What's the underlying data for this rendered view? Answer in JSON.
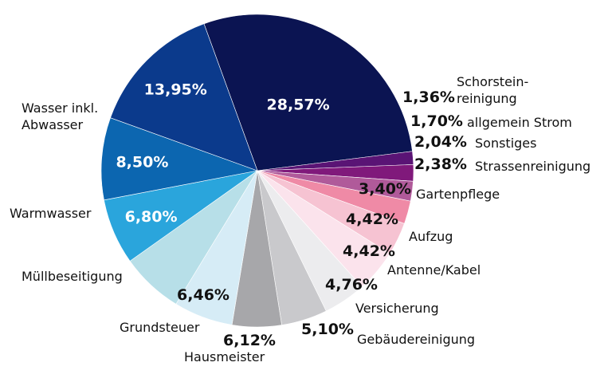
{
  "chart_data": {
    "type": "pie",
    "title": "",
    "slices": [
      {
        "label": "",
        "value": 28.57,
        "display": "28,57%",
        "color": "#0b1452"
      },
      {
        "label": "Schorstein-\nreinigung",
        "value": 1.36,
        "display": "1,36%",
        "color": "#5a1475"
      },
      {
        "label": "allgemein Strom",
        "value": 1.7,
        "display": "1,70%",
        "color": "#80197b"
      },
      {
        "label": "Sonstiges",
        "value": 2.04,
        "display": "2,04%",
        "color": "#b05a9a"
      },
      {
        "label": "Strassenreinigung",
        "value": 2.38,
        "display": "2,38%",
        "color": "#ef8aa6"
      },
      {
        "label": "Gartenpflege",
        "value": 3.4,
        "display": "3,40%",
        "color": "#f6c3d2"
      },
      {
        "label": "Aufzug",
        "value": 4.42,
        "display": "4,42%",
        "color": "#fbe3ec"
      },
      {
        "label": "Antenne/Kabel",
        "value": 4.42,
        "display": "4,42%",
        "color": "#ececee"
      },
      {
        "label": "Versicherung",
        "value": 4.76,
        "display": "4,76%",
        "color": "#c9c9cc"
      },
      {
        "label": "Gebäudereinigung",
        "value": 5.1,
        "display": "5,10%",
        "color": "#a7a7aa"
      },
      {
        "label": "Hausmeister",
        "value": 6.12,
        "display": "6,12%",
        "color": "#d6ecf6"
      },
      {
        "label": "Grundsteuer",
        "value": 6.46,
        "display": "6,46%",
        "color": "#b7dfe8"
      },
      {
        "label": "Müllbeseitigung",
        "value": 6.8,
        "display": "6,80%",
        "color": "#2aa5dc"
      },
      {
        "label": "Warmwasser",
        "value": 8.5,
        "display": "8,50%",
        "color": "#0c66b0"
      },
      {
        "label": "Wasser inkl.\nAbwasser",
        "value": 13.95,
        "display": "13,95%",
        "color": "#0b3a8c"
      }
    ]
  }
}
